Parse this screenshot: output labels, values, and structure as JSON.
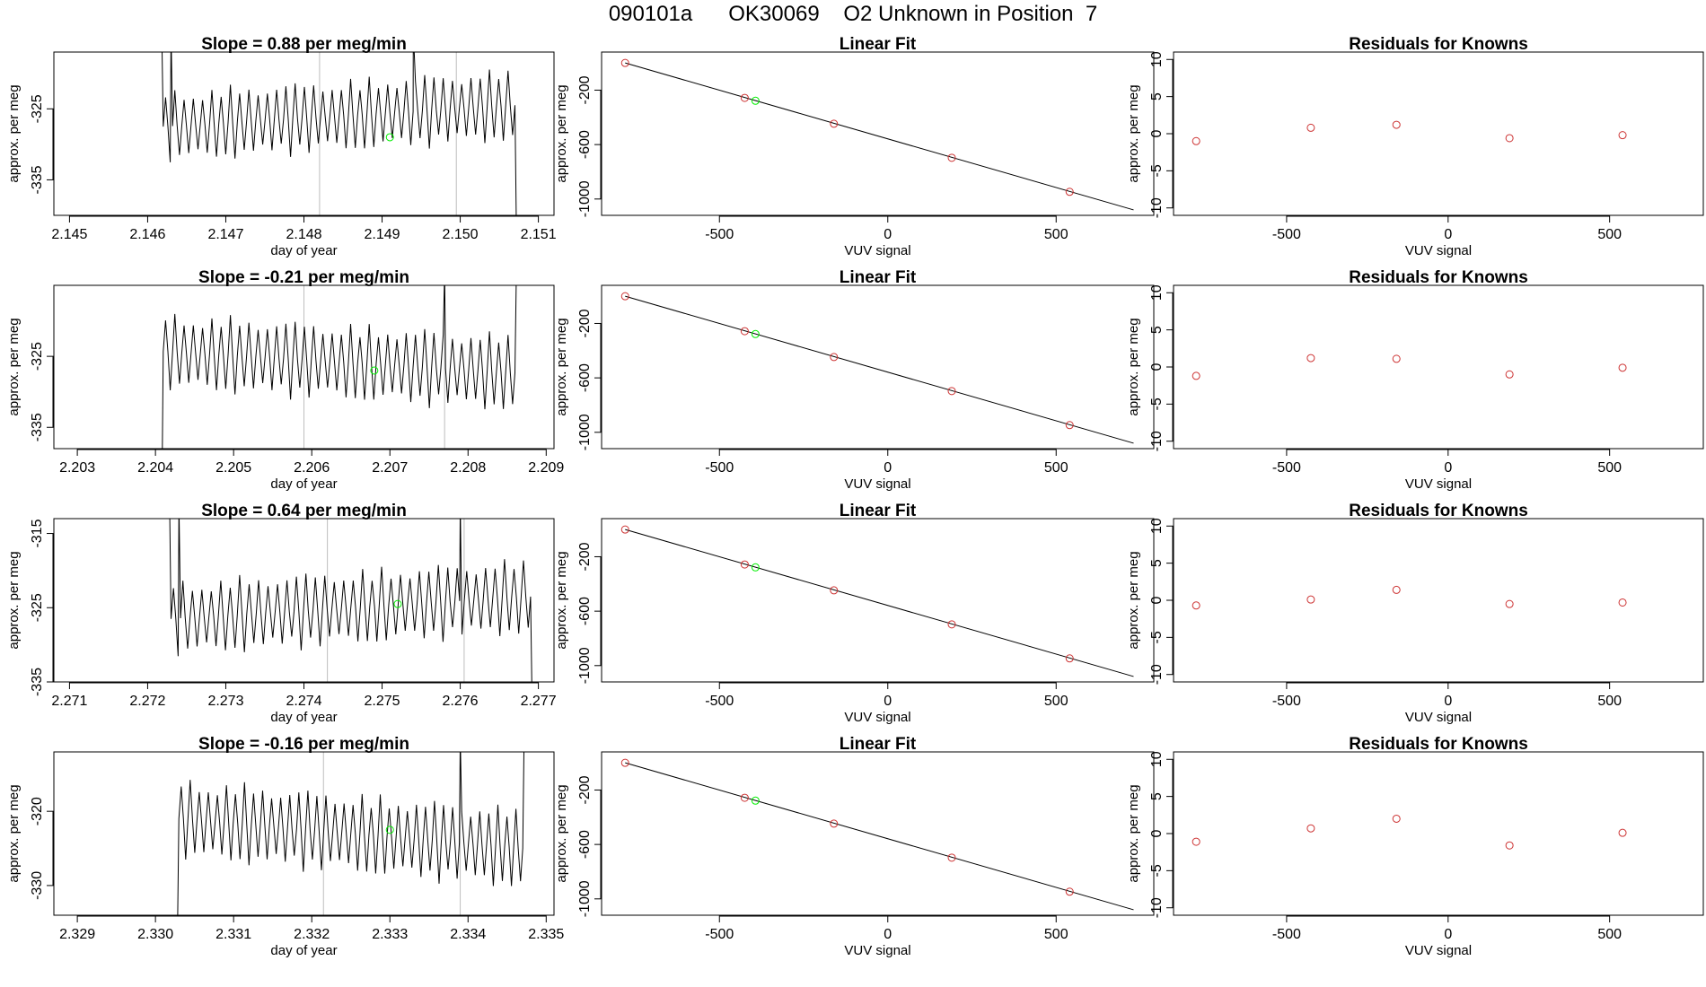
{
  "header": {
    "title": "090101a      OK30069    O2 Unknown in Position  7"
  },
  "colors": {
    "trace": "#000000",
    "known_point": "#cd3333",
    "unknown_point": "#00ee00",
    "marker_line": "#bebebe",
    "fit_line": "#000000"
  },
  "chart_data": [
    {
      "type": "line",
      "panel": "time-series",
      "row": 0,
      "title": "Slope =  0.88  per meg/min",
      "xlabel": "day of year",
      "ylabel": "approx. per meg",
      "xlim": [
        2.1448,
        2.1512
      ],
      "ylim": [
        -340,
        -317
      ],
      "xticks": [
        "2.145",
        "2.146",
        "2.147",
        "2.148",
        "2.149",
        "2.150",
        "2.151"
      ],
      "yticks": [
        "-325",
        "-335"
      ],
      "trace_x_start": 2.1462,
      "trace_x_end": 2.1507,
      "trace_start_y": -315,
      "trace_end_y": -342,
      "trace_mean": -326.0,
      "trace_amplitude": 4.5,
      "trace_trend": 0.3,
      "trace_oscillations": 38,
      "spikes": [
        {
          "x": 2.1494,
          "y": -314
        },
        {
          "x": 2.1463,
          "y": -314
        }
      ],
      "vlines": [
        2.1482,
        2.14995
      ],
      "unknown_point": {
        "x": 2.1491,
        "y": -329
      }
    },
    {
      "type": "scatter",
      "panel": "linear-fit",
      "row": 0,
      "title": "Linear Fit",
      "xlabel": "VUV signal",
      "ylabel": "approx. per meg",
      "xlim": [
        -850,
        790
      ],
      "ylim": [
        -1120,
        80
      ],
      "xticks": [
        "-500",
        "0",
        "500"
      ],
      "yticks": [
        "-200",
        "-600",
        "-1000"
      ],
      "fit_line": [
        {
          "x": -780,
          "y": 0
        },
        {
          "x": 730,
          "y": -1080
        }
      ],
      "knowns": [
        {
          "x": -780,
          "y": 0
        },
        {
          "x": -425,
          "y": -257
        },
        {
          "x": -160,
          "y": -447
        },
        {
          "x": 190,
          "y": -697
        },
        {
          "x": 540,
          "y": -947
        }
      ],
      "unknown": {
        "x": -393,
        "y": -278
      }
    },
    {
      "type": "scatter",
      "panel": "residuals",
      "row": 0,
      "title": "Residuals for Knowns",
      "xlabel": "VUV signal",
      "ylabel": "approx. per meg",
      "xlim": [
        -850,
        790
      ],
      "ylim": [
        -11,
        11
      ],
      "xticks": [
        "-500",
        "0",
        "500"
      ],
      "yticks": [
        "10",
        "5",
        "0",
        "-5",
        "-10"
      ],
      "knowns": [
        {
          "x": -780,
          "y": -1.0
        },
        {
          "x": -425,
          "y": 0.8
        },
        {
          "x": -160,
          "y": 1.2
        },
        {
          "x": 190,
          "y": -0.6
        },
        {
          "x": 540,
          "y": -0.2
        }
      ]
    },
    {
      "type": "line",
      "panel": "time-series",
      "row": 1,
      "title": "Slope =  -0.21  per meg/min",
      "xlabel": "day of year",
      "ylabel": "approx. per meg",
      "xlim": [
        2.2027,
        2.2091
      ],
      "ylim": [
        -338,
        -315
      ],
      "xticks": [
        "2.203",
        "2.204",
        "2.205",
        "2.206",
        "2.207",
        "2.208",
        "2.209"
      ],
      "yticks": [
        "-325",
        "-335"
      ],
      "trace_x_start": 2.2041,
      "trace_x_end": 2.2086,
      "trace_start_y": -345,
      "trace_end_y": -313,
      "trace_mean": -325.8,
      "trace_amplitude": 4.8,
      "trace_trend": -0.3,
      "trace_oscillations": 38,
      "spikes": [
        {
          "x": 2.2077,
          "y": -313
        }
      ],
      "vlines": [
        2.2059,
        2.2077
      ],
      "unknown_point": {
        "x": 2.2068,
        "y": -327
      }
    },
    {
      "type": "scatter",
      "panel": "linear-fit",
      "row": 1,
      "title": "Linear Fit",
      "xlabel": "VUV signal",
      "ylabel": "approx. per meg",
      "xlim": [
        -850,
        790
      ],
      "ylim": [
        -1120,
        80
      ],
      "xticks": [
        "-500",
        "0",
        "500"
      ],
      "yticks": [
        "-200",
        "-600",
        "-1000"
      ],
      "fit_line": [
        {
          "x": -780,
          "y": 0
        },
        {
          "x": 730,
          "y": -1080
        }
      ],
      "knowns": [
        {
          "x": -780,
          "y": 0
        },
        {
          "x": -425,
          "y": -257
        },
        {
          "x": -160,
          "y": -447
        },
        {
          "x": 190,
          "y": -697
        },
        {
          "x": 540,
          "y": -947
        }
      ],
      "unknown": {
        "x": -393,
        "y": -278
      }
    },
    {
      "type": "scatter",
      "panel": "residuals",
      "row": 1,
      "title": "Residuals for Knowns",
      "xlabel": "VUV signal",
      "ylabel": "approx. per meg",
      "xlim": [
        -850,
        790
      ],
      "ylim": [
        -11,
        11
      ],
      "xticks": [
        "-500",
        "0",
        "500"
      ],
      "yticks": [
        "10",
        "5",
        "0",
        "-5",
        "-10"
      ],
      "knowns": [
        {
          "x": -780,
          "y": -1.2
        },
        {
          "x": -425,
          "y": 1.2
        },
        {
          "x": -160,
          "y": 1.1
        },
        {
          "x": 190,
          "y": -1.0
        },
        {
          "x": 540,
          "y": -0.1
        }
      ]
    },
    {
      "type": "line",
      "panel": "time-series",
      "row": 2,
      "title": "Slope =  0.64  per meg/min",
      "xlabel": "day of year",
      "ylabel": "approx. per meg",
      "xlim": [
        2.2708,
        2.2772
      ],
      "ylim": [
        -335,
        -313
      ],
      "xticks": [
        "2.271",
        "2.272",
        "2.273",
        "2.274",
        "2.275",
        "2.276",
        "2.277"
      ],
      "yticks": [
        "-315",
        "-325",
        "-335"
      ],
      "trace_x_start": 2.2723,
      "trace_x_end": 2.2769,
      "trace_start_y": -311,
      "trace_end_y": -337,
      "trace_mean": -325.0,
      "trace_amplitude": 4.5,
      "trace_trend": 0.3,
      "trace_oscillations": 38,
      "spikes": [
        {
          "x": 2.276,
          "y": -311
        },
        {
          "x": 2.2724,
          "y": -311
        }
      ],
      "vlines": [
        2.2743,
        2.27605
      ],
      "unknown_point": {
        "x": 2.2752,
        "y": -324.5
      }
    },
    {
      "type": "scatter",
      "panel": "linear-fit",
      "row": 2,
      "title": "Linear Fit",
      "xlabel": "VUV signal",
      "ylabel": "approx. per meg",
      "xlim": [
        -850,
        790
      ],
      "ylim": [
        -1120,
        80
      ],
      "xticks": [
        "-500",
        "0",
        "500"
      ],
      "yticks": [
        "-200",
        "-600",
        "-1000"
      ],
      "fit_line": [
        {
          "x": -780,
          "y": 0
        },
        {
          "x": 730,
          "y": -1080
        }
      ],
      "knowns": [
        {
          "x": -780,
          "y": 0
        },
        {
          "x": -425,
          "y": -257
        },
        {
          "x": -160,
          "y": -447
        },
        {
          "x": 190,
          "y": -697
        },
        {
          "x": 540,
          "y": -947
        }
      ],
      "unknown": {
        "x": -393,
        "y": -278
      }
    },
    {
      "type": "scatter",
      "panel": "residuals",
      "row": 2,
      "title": "Residuals for Knowns",
      "xlabel": "VUV signal",
      "ylabel": "approx. per meg",
      "xlim": [
        -850,
        790
      ],
      "ylim": [
        -11,
        11
      ],
      "xticks": [
        "-500",
        "0",
        "500"
      ],
      "yticks": [
        "10",
        "5",
        "0",
        "-5",
        "-10"
      ],
      "knowns": [
        {
          "x": -780,
          "y": -0.7
        },
        {
          "x": -425,
          "y": 0.1
        },
        {
          "x": -160,
          "y": 1.4
        },
        {
          "x": 190,
          "y": -0.5
        },
        {
          "x": 540,
          "y": -0.3
        }
      ]
    },
    {
      "type": "line",
      "panel": "time-series",
      "row": 3,
      "title": "Slope =  -0.16  per meg/min",
      "xlabel": "day of year",
      "ylabel": "approx. per meg",
      "xlim": [
        2.3287,
        2.3351
      ],
      "ylim": [
        -334,
        -312
      ],
      "xticks": [
        "2.329",
        "2.330",
        "2.331",
        "2.332",
        "2.333",
        "2.334",
        "2.335"
      ],
      "yticks": [
        "-320",
        "-330"
      ],
      "trace_x_start": 2.3303,
      "trace_x_end": 2.3347,
      "trace_start_y": -336,
      "trace_end_y": -310,
      "trace_mean": -323.0,
      "trace_amplitude": 4.8,
      "trace_trend": -0.4,
      "trace_oscillations": 38,
      "spikes": [
        {
          "x": 2.3339,
          "y": -310
        }
      ],
      "vlines": [
        2.33215,
        2.3339
      ],
      "unknown_point": {
        "x": 2.333,
        "y": -322.5
      }
    },
    {
      "type": "scatter",
      "panel": "linear-fit",
      "row": 3,
      "title": "Linear Fit",
      "xlabel": "VUV signal",
      "ylabel": "approx. per meg",
      "xlim": [
        -850,
        790
      ],
      "ylim": [
        -1120,
        80
      ],
      "xticks": [
        "-500",
        "0",
        "500"
      ],
      "yticks": [
        "-200",
        "-600",
        "-1000"
      ],
      "fit_line": [
        {
          "x": -780,
          "y": 0
        },
        {
          "x": 730,
          "y": -1080
        }
      ],
      "knowns": [
        {
          "x": -780,
          "y": 0
        },
        {
          "x": -425,
          "y": -257
        },
        {
          "x": -160,
          "y": -447
        },
        {
          "x": 190,
          "y": -697
        },
        {
          "x": 540,
          "y": -947
        }
      ],
      "unknown": {
        "x": -393,
        "y": -278
      }
    },
    {
      "type": "scatter",
      "panel": "residuals",
      "row": 3,
      "title": "Residuals for Knowns",
      "xlabel": "VUV signal",
      "ylabel": "approx. per meg",
      "xlim": [
        -850,
        790
      ],
      "ylim": [
        -11,
        11
      ],
      "xticks": [
        "-500",
        "0",
        "500"
      ],
      "yticks": [
        "10",
        "5",
        "0",
        "-5",
        "-10"
      ],
      "knowns": [
        {
          "x": -780,
          "y": -1.1
        },
        {
          "x": -425,
          "y": 0.7
        },
        {
          "x": -160,
          "y": 2.0
        },
        {
          "x": 190,
          "y": -1.6
        },
        {
          "x": 540,
          "y": 0.1
        }
      ]
    }
  ]
}
